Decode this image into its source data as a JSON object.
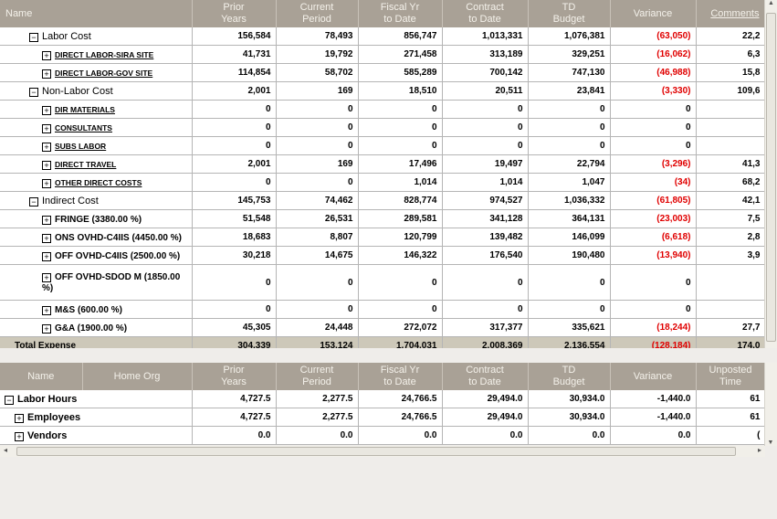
{
  "cost_table": {
    "headers": [
      "Name",
      "Prior\nYears",
      "Current\nPeriod",
      "Fiscal Yr\nto Date",
      "Contract\nto Date",
      "TD\nBudget",
      "Variance",
      "Comments"
    ],
    "rows": [
      {
        "name": "Labor Cost",
        "level": 1,
        "expanded": true,
        "values": [
          "156,584",
          "78,493",
          "856,747",
          "1,013,331",
          "1,076,381",
          "(63,050)",
          "22,2"
        ]
      },
      {
        "name": "DIRECT LABOR-SIRA SITE",
        "level": 2,
        "expanded": false,
        "values": [
          "41,731",
          "19,792",
          "271,458",
          "313,189",
          "329,251",
          "(16,062)",
          "6,3"
        ]
      },
      {
        "name": "DIRECT LABOR-GOV SITE",
        "level": 2,
        "expanded": false,
        "values": [
          "114,854",
          "58,702",
          "585,289",
          "700,142",
          "747,130",
          "(46,988)",
          "15,8"
        ]
      },
      {
        "name": "Non-Labor Cost",
        "level": 1,
        "expanded": true,
        "values": [
          "2,001",
          "169",
          "18,510",
          "20,511",
          "23,841",
          "(3,330)",
          "109,6"
        ]
      },
      {
        "name": "DIR MATERIALS",
        "level": 2,
        "expanded": false,
        "values": [
          "0",
          "0",
          "0",
          "0",
          "0",
          "0",
          ""
        ]
      },
      {
        "name": "CONSULTANTS",
        "level": 2,
        "expanded": false,
        "values": [
          "0",
          "0",
          "0",
          "0",
          "0",
          "0",
          ""
        ]
      },
      {
        "name": "SUBS LABOR",
        "level": 2,
        "expanded": false,
        "values": [
          "0",
          "0",
          "0",
          "0",
          "0",
          "0",
          ""
        ]
      },
      {
        "name": "DIRECT TRAVEL",
        "level": 2,
        "expanded": false,
        "values": [
          "2,001",
          "169",
          "17,496",
          "19,497",
          "22,794",
          "(3,296)",
          "41,3"
        ]
      },
      {
        "name": "OTHER DIRECT COSTS",
        "level": 2,
        "expanded": false,
        "values": [
          "0",
          "0",
          "1,014",
          "1,014",
          "1,047",
          "(34)",
          "68,2"
        ]
      },
      {
        "name": "Indirect Cost",
        "level": 1,
        "expanded": true,
        "values": [
          "145,753",
          "74,462",
          "828,774",
          "974,527",
          "1,036,332",
          "(61,805)",
          "42,1"
        ]
      },
      {
        "name": "FRINGE (3380.00 %)",
        "level": 3,
        "expanded": false,
        "values": [
          "51,548",
          "26,531",
          "289,581",
          "341,128",
          "364,131",
          "(23,003)",
          "7,5"
        ]
      },
      {
        "name": "ONS OVHD-C4IIS (4450.00 %)",
        "level": 3,
        "expanded": false,
        "values": [
          "18,683",
          "8,807",
          "120,799",
          "139,482",
          "146,099",
          "(6,618)",
          "2,8"
        ]
      },
      {
        "name": "OFF OVHD-C4IIS (2500.00 %)",
        "level": 3,
        "expanded": false,
        "values": [
          "30,218",
          "14,675",
          "146,322",
          "176,540",
          "190,480",
          "(13,940)",
          "3,9"
        ]
      },
      {
        "name": "OFF OVHD-SDOD M (1850.00 %)",
        "level": 3,
        "expanded": false,
        "tall": true,
        "values": [
          "0",
          "0",
          "0",
          "0",
          "0",
          "0",
          ""
        ]
      },
      {
        "name": "M&S (600.00 %)",
        "level": 3,
        "expanded": false,
        "values": [
          "0",
          "0",
          "0",
          "0",
          "0",
          "0",
          ""
        ]
      },
      {
        "name": "G&A (1900.00 %)",
        "level": 3,
        "expanded": false,
        "values": [
          "45,305",
          "24,448",
          "272,072",
          "317,377",
          "335,621",
          "(18,244)",
          "27,7"
        ]
      }
    ],
    "total": {
      "name": "Total Expense",
      "values": [
        "304,339",
        "153,124",
        "1,704,031",
        "2,008,369",
        "2,136,554",
        "(128,184)",
        "174,0"
      ]
    }
  },
  "hours_table": {
    "headers": [
      "Name",
      "Home Org",
      "Prior\nYears",
      "Current\nPeriod",
      "Fiscal Yr\nto Date",
      "Contract\nto Date",
      "TD\nBudget",
      "Variance",
      "Unposted\nTime"
    ],
    "rows": [
      {
        "name": "Labor Hours",
        "expanded": true,
        "level": 1,
        "values": [
          "4,727.5",
          "2,277.5",
          "24,766.5",
          "29,494.0",
          "30,934.0",
          "-1,440.0",
          "61"
        ]
      },
      {
        "name": "Employees",
        "expanded": false,
        "level": 2,
        "values": [
          "4,727.5",
          "2,277.5",
          "24,766.5",
          "29,494.0",
          "30,934.0",
          "-1,440.0",
          "61"
        ]
      },
      {
        "name": "Vendors",
        "expanded": false,
        "level": 2,
        "values": [
          "0.0",
          "0.0",
          "0.0",
          "0.0",
          "0.0",
          "0.0",
          "("
        ]
      }
    ]
  },
  "colors": {
    "header_bg": "#a9a196",
    "negative": "#e00000",
    "total_bg": "#cdc8b9"
  }
}
